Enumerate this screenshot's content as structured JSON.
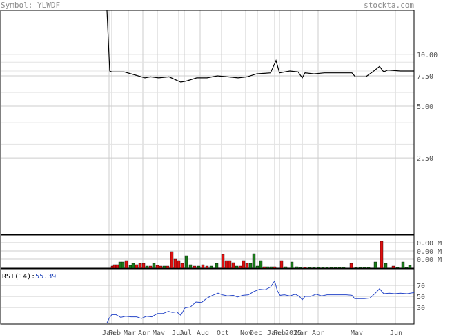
{
  "header": {
    "symbol_label": "Symbol:",
    "symbol": "YLWDF",
    "brand": "stockta.com"
  },
  "chart_data": [
    {
      "type": "line",
      "panel": "price",
      "yscale": "log",
      "ylim": [
        0.9,
        18
      ],
      "ytick_labels": [
        "10.00",
        "7.50",
        "5.00",
        "2.50"
      ],
      "ytick_values": [
        10,
        7.5,
        5,
        2.5
      ],
      "x_month_labels": [
        "Jan",
        "Feb",
        "Mar",
        "Apr",
        "May",
        "Jun",
        "Jul",
        "Aug",
        "Oct",
        "Nov",
        "Dec",
        "Jan",
        "Feb",
        "2025",
        "Mar",
        "Apr",
        "May",
        "Jun"
      ],
      "series": [
        {
          "values": [
            {
              "x": 155,
              "y": 20
            },
            {
              "x": 159,
              "y": 8.0
            },
            {
              "x": 162,
              "y": 7.9
            },
            {
              "x": 180,
              "y": 7.9
            },
            {
              "x": 195,
              "y": 7.6
            },
            {
              "x": 210,
              "y": 7.3
            },
            {
              "x": 218,
              "y": 7.4
            },
            {
              "x": 230,
              "y": 7.3
            },
            {
              "x": 245,
              "y": 7.4
            },
            {
              "x": 255,
              "y": 7.1
            },
            {
              "x": 262,
              "y": 6.9
            },
            {
              "x": 270,
              "y": 7.0
            },
            {
              "x": 285,
              "y": 7.3
            },
            {
              "x": 300,
              "y": 7.3
            },
            {
              "x": 315,
              "y": 7.5
            },
            {
              "x": 330,
              "y": 7.4
            },
            {
              "x": 345,
              "y": 7.3
            },
            {
              "x": 358,
              "y": 7.4
            },
            {
              "x": 372,
              "y": 7.7
            },
            {
              "x": 392,
              "y": 7.8
            },
            {
              "x": 400,
              "y": 9.2
            },
            {
              "x": 405,
              "y": 7.8
            },
            {
              "x": 420,
              "y": 8.0
            },
            {
              "x": 432,
              "y": 7.9
            },
            {
              "x": 438,
              "y": 7.3
            },
            {
              "x": 442,
              "y": 7.8
            },
            {
              "x": 455,
              "y": 7.7
            },
            {
              "x": 470,
              "y": 7.8
            },
            {
              "x": 490,
              "y": 7.8
            },
            {
              "x": 510,
              "y": 7.8
            },
            {
              "x": 515,
              "y": 7.4
            },
            {
              "x": 530,
              "y": 7.4
            },
            {
              "x": 540,
              "y": 7.9
            },
            {
              "x": 550,
              "y": 8.5
            },
            {
              "x": 556,
              "y": 7.9
            },
            {
              "x": 562,
              "y": 8.1
            },
            {
              "x": 580,
              "y": 8.0
            },
            {
              "x": 600,
              "y": 8.0
            }
          ]
        }
      ]
    },
    {
      "type": "bar",
      "panel": "volume",
      "ytick_labels": [
        "0.00 M",
        "0.00 M",
        "0.00 M"
      ],
      "bars": [
        {
          "x": 161,
          "h": 3,
          "c": "red"
        },
        {
          "x": 164,
          "h": 5,
          "c": "red"
        },
        {
          "x": 168,
          "h": 5,
          "c": "red"
        },
        {
          "x": 172,
          "h": 9,
          "c": "green"
        },
        {
          "x": 176,
          "h": 9,
          "c": "green"
        },
        {
          "x": 181,
          "h": 11,
          "c": "red"
        },
        {
          "x": 187,
          "h": 4,
          "c": "green"
        },
        {
          "x": 191,
          "h": 7,
          "c": "green"
        },
        {
          "x": 196,
          "h": 5,
          "c": "red"
        },
        {
          "x": 201,
          "h": 7,
          "c": "red"
        },
        {
          "x": 206,
          "h": 7,
          "c": "red"
        },
        {
          "x": 211,
          "h": 3,
          "c": "green"
        },
        {
          "x": 216,
          "h": 3,
          "c": "red"
        },
        {
          "x": 221,
          "h": 7,
          "c": "green"
        },
        {
          "x": 226,
          "h": 4,
          "c": "red"
        },
        {
          "x": 231,
          "h": 3,
          "c": "red"
        },
        {
          "x": 236,
          "h": 3,
          "c": "green"
        },
        {
          "x": 241,
          "h": 3,
          "c": "red"
        },
        {
          "x": 247,
          "h": 24,
          "c": "red"
        },
        {
          "x": 252,
          "h": 13,
          "c": "red"
        },
        {
          "x": 257,
          "h": 11,
          "c": "red"
        },
        {
          "x": 262,
          "h": 7,
          "c": "red"
        },
        {
          "x": 268,
          "h": 18,
          "c": "green"
        },
        {
          "x": 274,
          "h": 5,
          "c": "green"
        },
        {
          "x": 280,
          "h": 3,
          "c": "red"
        },
        {
          "x": 286,
          "h": 3,
          "c": "green"
        },
        {
          "x": 292,
          "h": 5,
          "c": "red"
        },
        {
          "x": 298,
          "h": 3,
          "c": "red"
        },
        {
          "x": 304,
          "h": 3,
          "c": "green"
        },
        {
          "x": 312,
          "h": 7,
          "c": "green"
        },
        {
          "x": 321,
          "h": 20,
          "c": "red"
        },
        {
          "x": 326,
          "h": 11,
          "c": "red"
        },
        {
          "x": 331,
          "h": 11,
          "c": "red"
        },
        {
          "x": 336,
          "h": 8,
          "c": "red"
        },
        {
          "x": 341,
          "h": 3,
          "c": "green"
        },
        {
          "x": 346,
          "h": 3,
          "c": "red"
        },
        {
          "x": 351,
          "h": 11,
          "c": "red"
        },
        {
          "x": 356,
          "h": 7,
          "c": "red"
        },
        {
          "x": 361,
          "h": 7,
          "c": "green"
        },
        {
          "x": 366,
          "h": 21,
          "c": "green"
        },
        {
          "x": 371,
          "h": 3,
          "c": "green"
        },
        {
          "x": 376,
          "h": 11,
          "c": "green"
        },
        {
          "x": 381,
          "h": 2,
          "c": "red"
        },
        {
          "x": 386,
          "h": 2,
          "c": "green"
        },
        {
          "x": 391,
          "h": 2,
          "c": "green"
        },
        {
          "x": 396,
          "h": 2,
          "c": "red"
        },
        {
          "x": 406,
          "h": 11,
          "c": "red"
        },
        {
          "x": 412,
          "h": 2,
          "c": "green"
        },
        {
          "x": 421,
          "h": 9,
          "c": "green"
        },
        {
          "x": 428,
          "h": 2,
          "c": "green"
        },
        {
          "x": 433,
          "h": 1,
          "c": "green"
        },
        {
          "x": 440,
          "h": 1,
          "c": "red"
        },
        {
          "x": 447,
          "h": 1,
          "c": "green"
        },
        {
          "x": 453,
          "h": 1,
          "c": "green"
        },
        {
          "x": 460,
          "h": 1,
          "c": "green"
        },
        {
          "x": 466,
          "h": 1,
          "c": "green"
        },
        {
          "x": 472,
          "h": 1,
          "c": "green"
        },
        {
          "x": 478,
          "h": 1,
          "c": "green"
        },
        {
          "x": 484,
          "h": 1,
          "c": "green"
        },
        {
          "x": 490,
          "h": 1,
          "c": "green"
        },
        {
          "x": 496,
          "h": 1,
          "c": "green"
        },
        {
          "x": 507,
          "h": 7,
          "c": "red"
        },
        {
          "x": 514,
          "h": 1,
          "c": "green"
        },
        {
          "x": 520,
          "h": 1,
          "c": "green"
        },
        {
          "x": 526,
          "h": 1,
          "c": "green"
        },
        {
          "x": 532,
          "h": 1,
          "c": "green"
        },
        {
          "x": 542,
          "h": 9,
          "c": "green"
        },
        {
          "x": 551,
          "h": 39,
          "c": "red"
        },
        {
          "x": 557,
          "h": 7,
          "c": "green"
        },
        {
          "x": 568,
          "h": 3,
          "c": "red"
        },
        {
          "x": 574,
          "h": 1,
          "c": "green"
        },
        {
          "x": 582,
          "h": 9,
          "c": "green"
        },
        {
          "x": 587,
          "h": 1,
          "c": "green"
        },
        {
          "x": 592,
          "h": 4,
          "c": "green"
        }
      ]
    },
    {
      "type": "line",
      "panel": "rsi",
      "ylim": [
        0,
        100
      ],
      "ytick_values": [
        70,
        50,
        30
      ],
      "ytick_labels": [
        "70",
        "50",
        "30"
      ],
      "readout_label": "RSI(14):",
      "readout_value": "55.39",
      "series": [
        {
          "values": [
            {
              "x": 155,
              "y": 2
            },
            {
              "x": 158,
              "y": 10
            },
            {
              "x": 162,
              "y": 17
            },
            {
              "x": 168,
              "y": 17
            },
            {
              "x": 175,
              "y": 12
            },
            {
              "x": 182,
              "y": 14
            },
            {
              "x": 190,
              "y": 13
            },
            {
              "x": 198,
              "y": 13
            },
            {
              "x": 205,
              "y": 10
            },
            {
              "x": 212,
              "y": 14
            },
            {
              "x": 220,
              "y": 13
            },
            {
              "x": 228,
              "y": 19
            },
            {
              "x": 236,
              "y": 19
            },
            {
              "x": 244,
              "y": 23
            },
            {
              "x": 250,
              "y": 21
            },
            {
              "x": 256,
              "y": 22
            },
            {
              "x": 262,
              "y": 16
            },
            {
              "x": 268,
              "y": 29
            },
            {
              "x": 276,
              "y": 31
            },
            {
              "x": 284,
              "y": 40
            },
            {
              "x": 292,
              "y": 39
            },
            {
              "x": 300,
              "y": 47
            },
            {
              "x": 308,
              "y": 52
            },
            {
              "x": 316,
              "y": 56
            },
            {
              "x": 322,
              "y": 53
            },
            {
              "x": 330,
              "y": 51
            },
            {
              "x": 338,
              "y": 52
            },
            {
              "x": 344,
              "y": 49
            },
            {
              "x": 352,
              "y": 52
            },
            {
              "x": 360,
              "y": 53
            },
            {
              "x": 368,
              "y": 59
            },
            {
              "x": 376,
              "y": 63
            },
            {
              "x": 384,
              "y": 62
            },
            {
              "x": 392,
              "y": 67
            },
            {
              "x": 398,
              "y": 78
            },
            {
              "x": 402,
              "y": 60
            },
            {
              "x": 406,
              "y": 52
            },
            {
              "x": 412,
              "y": 53
            },
            {
              "x": 420,
              "y": 51
            },
            {
              "x": 428,
              "y": 54
            },
            {
              "x": 434,
              "y": 50
            },
            {
              "x": 438,
              "y": 44
            },
            {
              "x": 442,
              "y": 50
            },
            {
              "x": 450,
              "y": 50
            },
            {
              "x": 458,
              "y": 54
            },
            {
              "x": 466,
              "y": 51
            },
            {
              "x": 474,
              "y": 53
            },
            {
              "x": 482,
              "y": 53
            },
            {
              "x": 492,
              "y": 53
            },
            {
              "x": 502,
              "y": 53
            },
            {
              "x": 510,
              "y": 52
            },
            {
              "x": 514,
              "y": 46
            },
            {
              "x": 520,
              "y": 46
            },
            {
              "x": 528,
              "y": 46
            },
            {
              "x": 536,
              "y": 47
            },
            {
              "x": 544,
              "y": 56
            },
            {
              "x": 550,
              "y": 64
            },
            {
              "x": 556,
              "y": 55
            },
            {
              "x": 564,
              "y": 56
            },
            {
              "x": 572,
              "y": 55
            },
            {
              "x": 580,
              "y": 56
            },
            {
              "x": 590,
              "y": 55
            },
            {
              "x": 600,
              "y": 57
            }
          ]
        }
      ]
    }
  ]
}
